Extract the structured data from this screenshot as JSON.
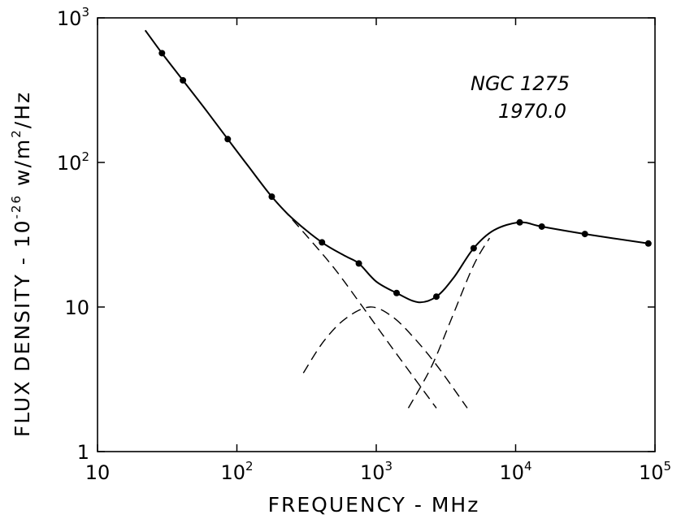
{
  "chart_data": {
    "type": "line",
    "xscale": "log",
    "yscale": "log",
    "xlim": [
      10,
      100000
    ],
    "ylim": [
      1,
      1000
    ],
    "grid": false,
    "xlabel": "FREQUENCY - MHz",
    "ylabel": {
      "prefix": "FLUX DENSITY - 10",
      "exp": "-26",
      "mid": " w/m",
      "sq": "2",
      "suffix": "/Hz"
    },
    "annotations": [
      "NGC  1275",
      "1970.0"
    ],
    "x_ticks": [
      {
        "value": 10,
        "base": "10",
        "exp": ""
      },
      {
        "value": 100,
        "base": "10",
        "exp": "2"
      },
      {
        "value": 1000,
        "base": "10",
        "exp": "3"
      },
      {
        "value": 10000,
        "base": "10",
        "exp": "4"
      },
      {
        "value": 100000,
        "base": "10",
        "exp": "5"
      }
    ],
    "y_ticks": [
      {
        "value": 1,
        "base": "1",
        "exp": ""
      },
      {
        "value": 10,
        "base": "10",
        "exp": ""
      },
      {
        "value": 100,
        "base": "10",
        "exp": "2"
      },
      {
        "value": 1000,
        "base": "10",
        "exp": "3"
      }
    ],
    "series": [
      {
        "style": "points",
        "x": [
          29,
          41,
          86,
          178,
          408,
          750,
          1400,
          2700,
          5000,
          10700,
          15400,
          31400,
          89600
        ],
        "y": [
          570,
          370,
          145,
          58,
          28,
          20,
          12.5,
          11.8,
          25.5,
          38.5,
          36,
          32,
          27.5
        ]
      },
      {
        "style": "solid",
        "x": [
          22,
          29,
          41,
          60,
          86,
          120,
          178,
          250,
          408,
          600,
          750,
          1000,
          1400,
          2000,
          2700,
          3600,
          5000,
          7000,
          10700,
          15400,
          31400,
          89600
        ],
        "y": [
          820,
          570,
          370,
          230,
          145,
          95,
          58,
          41,
          28,
          22.5,
          20,
          15,
          12.5,
          10.8,
          11.8,
          16,
          25.5,
          34,
          38.5,
          36,
          32,
          27.5
        ]
      },
      {
        "style": "dashed",
        "x": [
          178,
          300,
          500,
          800,
          1200,
          1800,
          2700
        ],
        "y": [
          58,
          33,
          18.5,
          10,
          5.8,
          3.4,
          2
        ]
      },
      {
        "style": "dashed",
        "x": [
          300,
          420,
          600,
          900,
          1300,
          1900,
          2800,
          4500
        ],
        "y": [
          3.5,
          5.8,
          8.3,
          10,
          8.6,
          6,
          3.8,
          2
        ]
      },
      {
        "style": "dashed",
        "x": [
          1700,
          2500,
          3500,
          5000,
          6500
        ],
        "y": [
          2,
          3.9,
          8.5,
          19.5,
          30
        ]
      }
    ]
  }
}
